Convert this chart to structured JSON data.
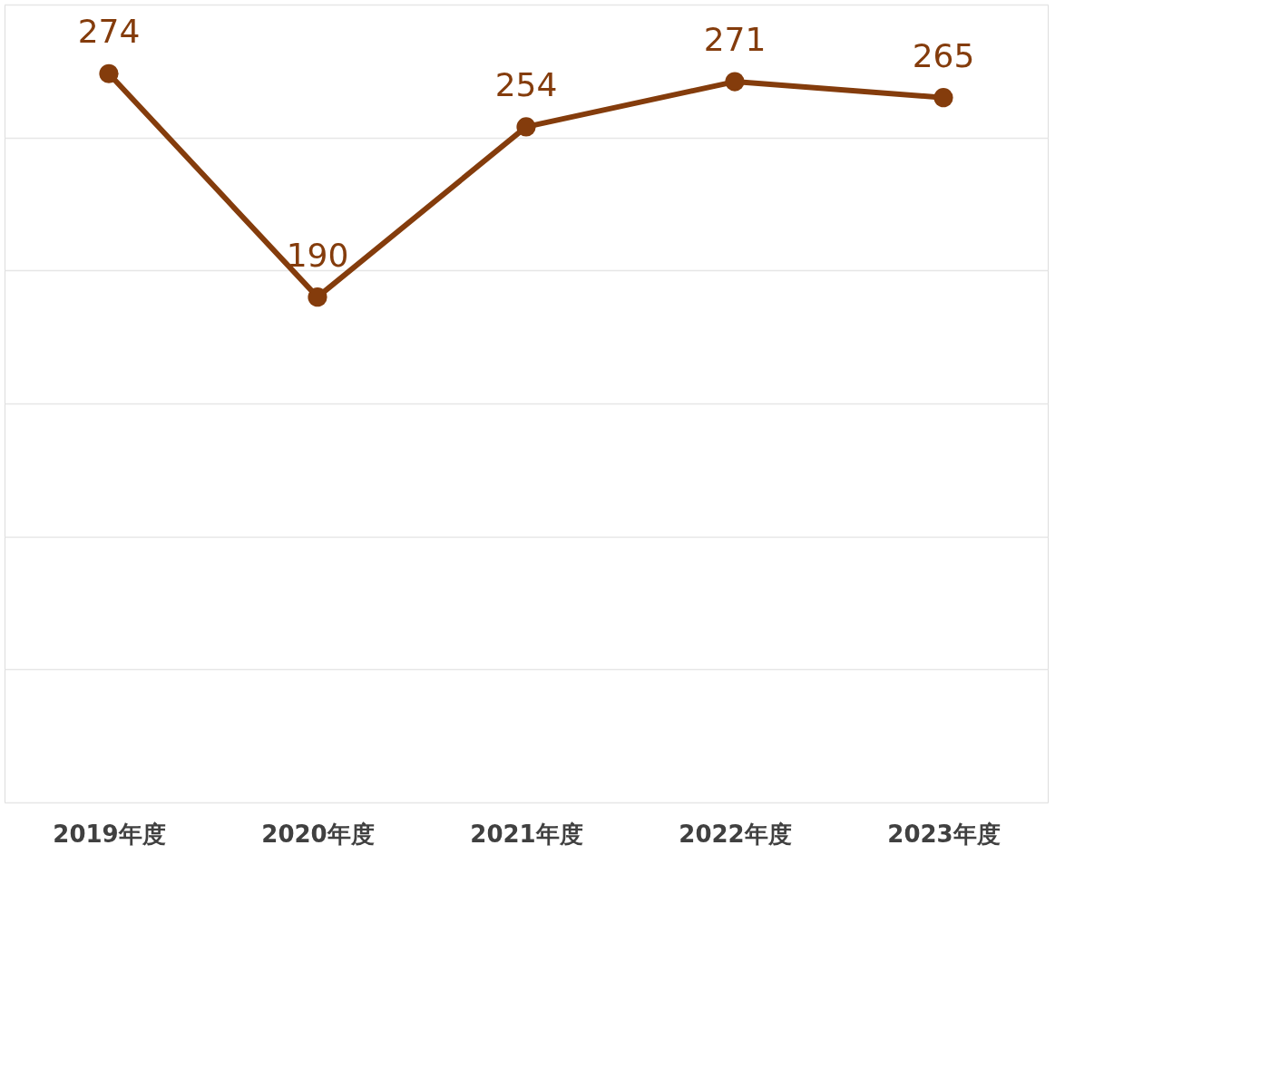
{
  "chart_data": {
    "type": "line",
    "categories": [
      "2019年度",
      "2020年度",
      "2021年度",
      "2022年度",
      "2023年度"
    ],
    "series": [
      {
        "color": "#843c0c",
        "values": [
          274,
          190,
          254,
          271,
          265
        ]
      }
    ],
    "ylim": [
      0,
      300
    ],
    "yticks": [
      {
        "value": 0,
        "label": null
      },
      {
        "value": 50,
        "label": null
      },
      {
        "value": 100,
        "label": null
      },
      {
        "value": 150,
        "label": null
      },
      {
        "value": 200,
        "label": null
      },
      {
        "value": 250,
        "label": null
      },
      {
        "value": 300,
        "label": null
      }
    ],
    "tick_labels": "x",
    "grid": "y",
    "marker": "circle",
    "line_style": "solid",
    "data_labels": true
  }
}
